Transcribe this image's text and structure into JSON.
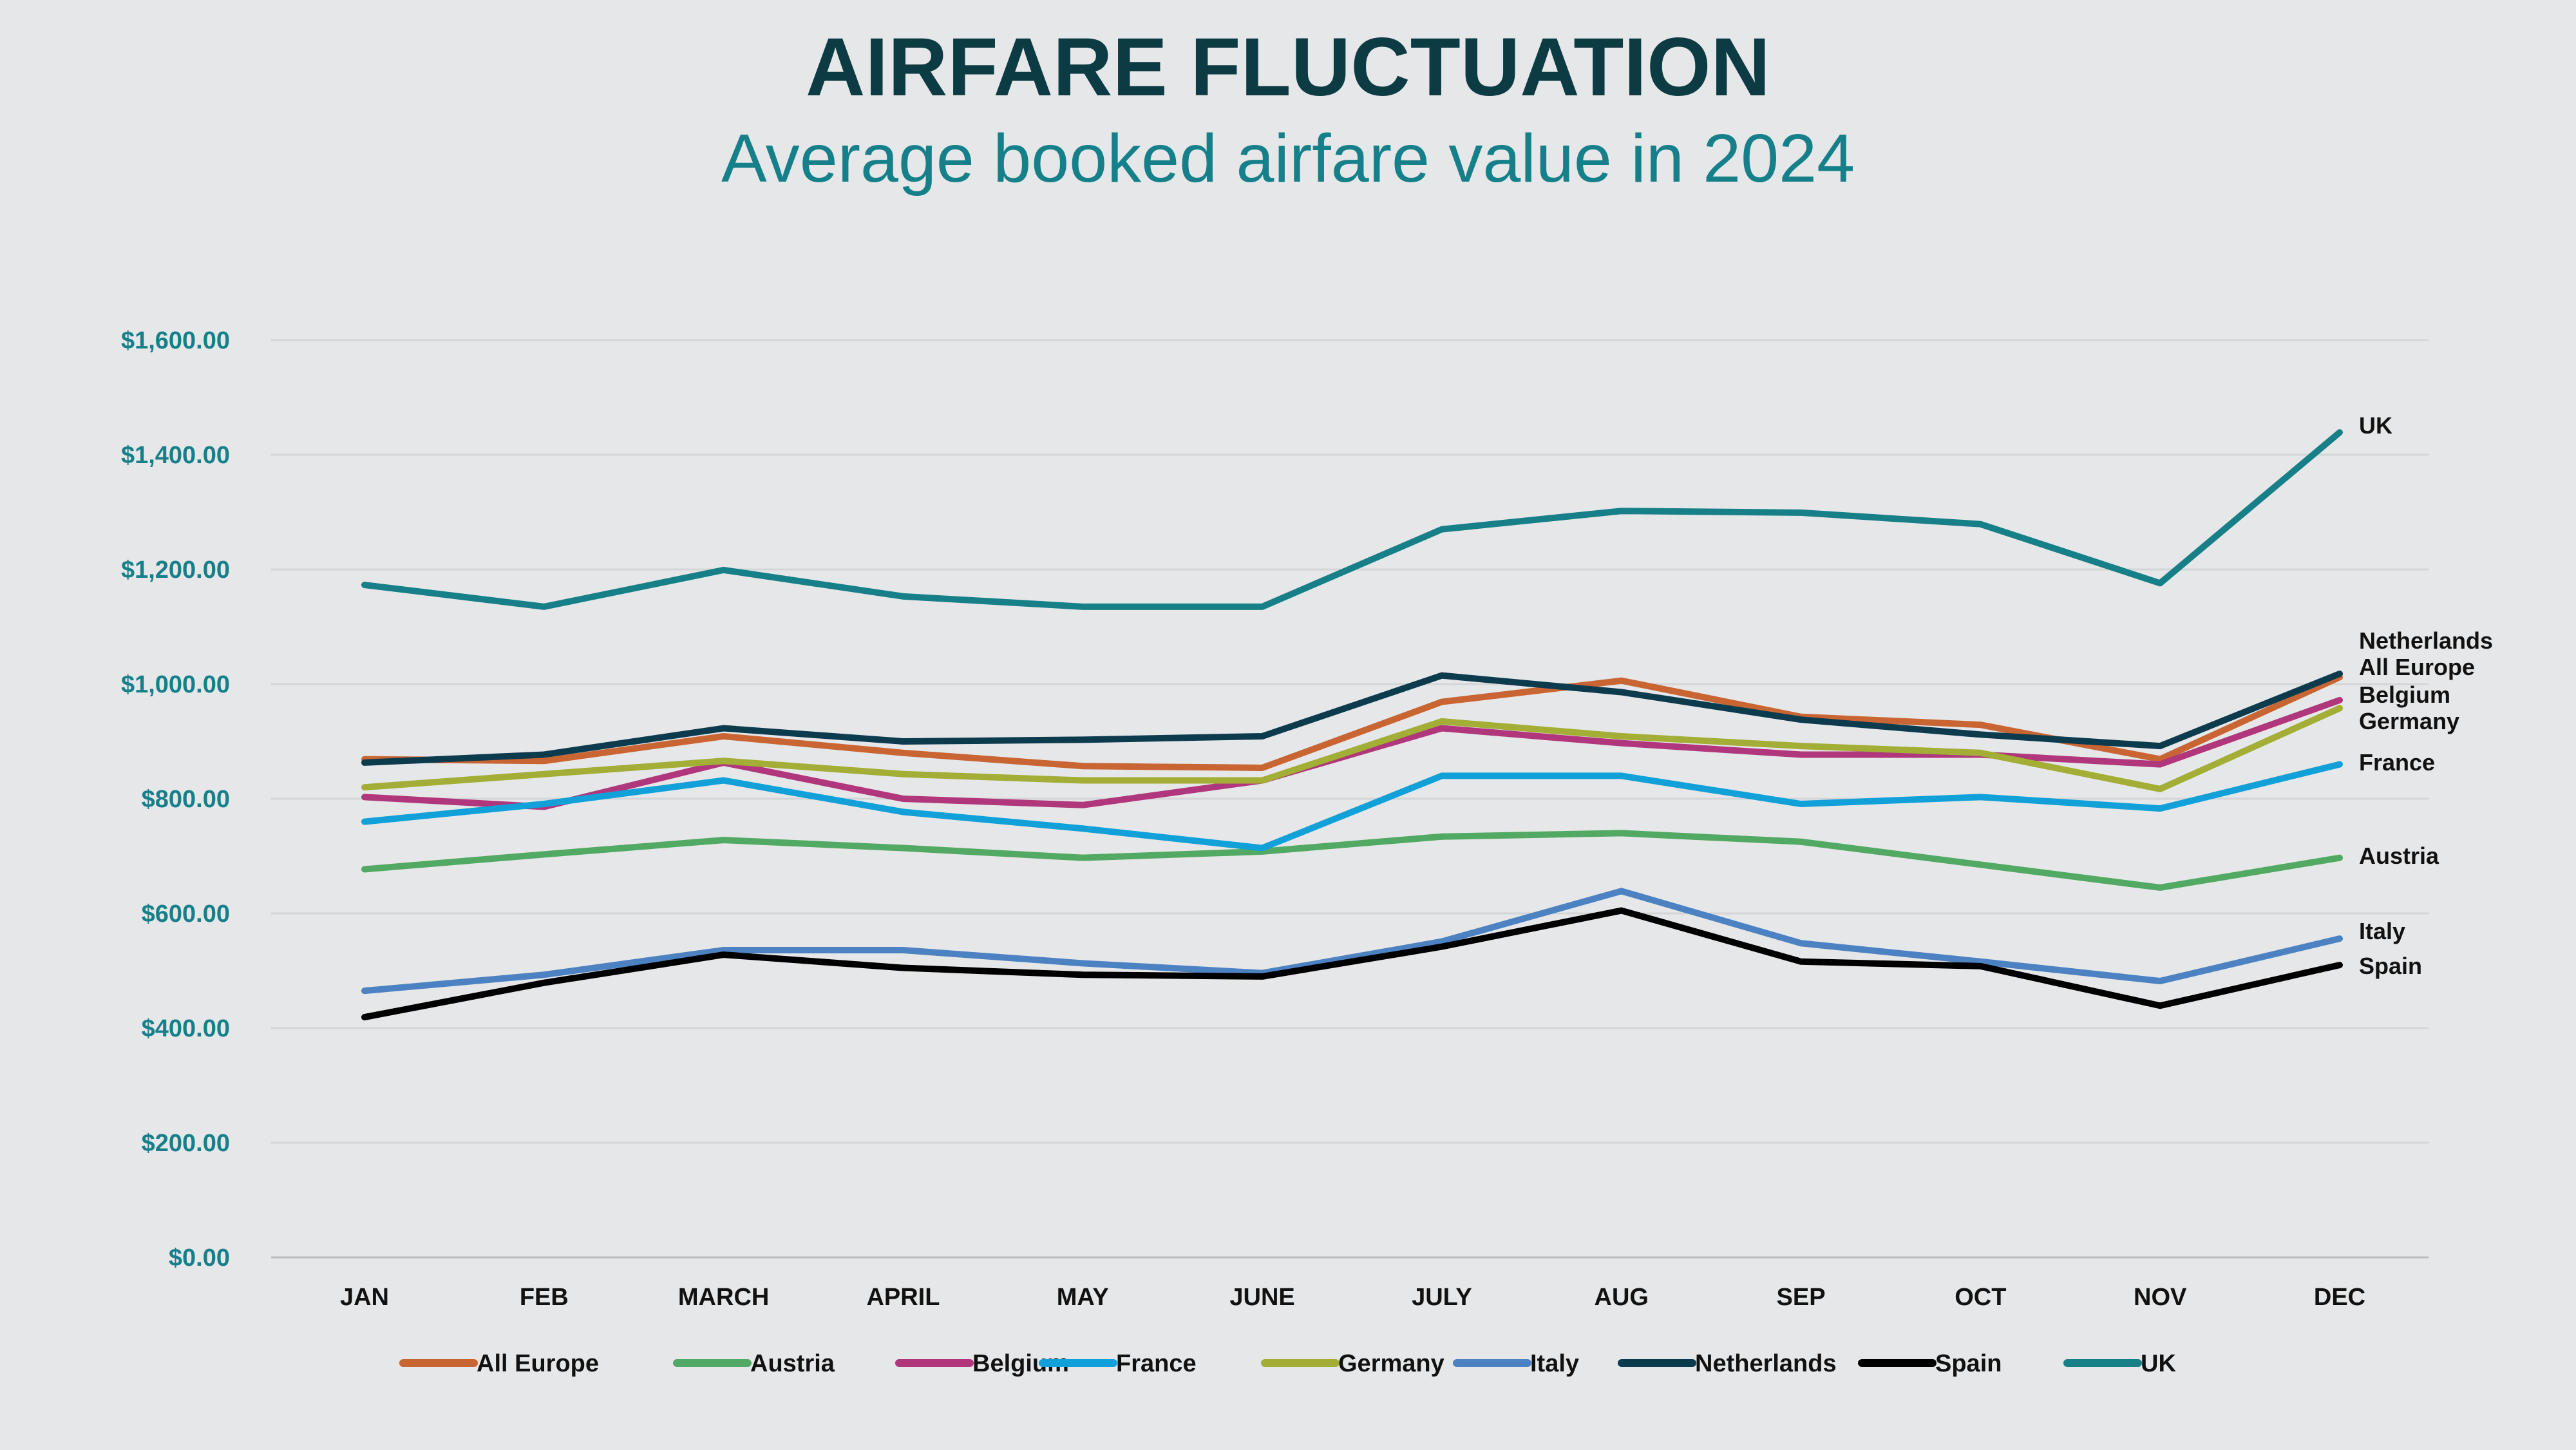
{
  "chart_data": {
    "type": "line",
    "title": "AIRFARE FLUCTUATION",
    "subtitle": "Average booked airfare value in 2024",
    "xlabel": "",
    "ylabel": "",
    "categories": [
      "JAN",
      "FEB",
      "MARCH",
      "APRIL",
      "MAY",
      "JUNE",
      "JULY",
      "AUG",
      "SEP",
      "OCT",
      "NOV",
      "DEC"
    ],
    "ylim": [
      0,
      1600
    ],
    "yticks": [
      0,
      200,
      400,
      600,
      800,
      1000,
      1200,
      1400,
      1600
    ],
    "ytick_labels": [
      "$0.00",
      "$200.00",
      "$400.00",
      "$600.00",
      "$800.00",
      "$1,000.00",
      "$1,200.00",
      "$1,400.00",
      "$1,600.00"
    ],
    "grid": true,
    "legend": "bottom",
    "series": [
      {
        "name": "All Europe",
        "color": "#c86533",
        "values": [
          869,
          866,
          909,
          880,
          857,
          854,
          969,
          1006,
          943,
          929,
          869,
          1012
        ]
      },
      {
        "name": "Austria",
        "color": "#52a963",
        "values": [
          677,
          703,
          728,
          714,
          697,
          708,
          734,
          740,
          725,
          685,
          645,
          697
        ]
      },
      {
        "name": "Belgium",
        "color": "#b0377c",
        "values": [
          803,
          786,
          863,
          800,
          789,
          832,
          923,
          897,
          877,
          877,
          860,
          972
        ]
      },
      {
        "name": "France",
        "color": "#12a0d8",
        "values": [
          760,
          791,
          832,
          777,
          748,
          714,
          840,
          840,
          791,
          803,
          783,
          860
        ]
      },
      {
        "name": "Germany",
        "color": "#a2ae35",
        "values": [
          820,
          843,
          866,
          843,
          832,
          832,
          935,
          909,
          892,
          880,
          817,
          958
        ]
      },
      {
        "name": "Italy",
        "color": "#4d82c2",
        "values": [
          465,
          493,
          536,
          536,
          513,
          496,
          551,
          639,
          548,
          516,
          482,
          556
        ]
      },
      {
        "name": "Netherlands",
        "color": "#0d3b4e",
        "values": [
          863,
          877,
          923,
          900,
          903,
          909,
          1015,
          986,
          938,
          912,
          892,
          1018
        ]
      },
      {
        "name": "Spain",
        "color": "#000000",
        "values": [
          419,
          479,
          528,
          505,
          493,
          490,
          542,
          605,
          516,
          508,
          439,
          510
        ]
      },
      {
        "name": "UK",
        "color": "#177f88",
        "values": [
          1173,
          1135,
          1199,
          1153,
          1135,
          1135,
          1270,
          1302,
          1299,
          1279,
          1176,
          1439
        ]
      }
    ]
  }
}
